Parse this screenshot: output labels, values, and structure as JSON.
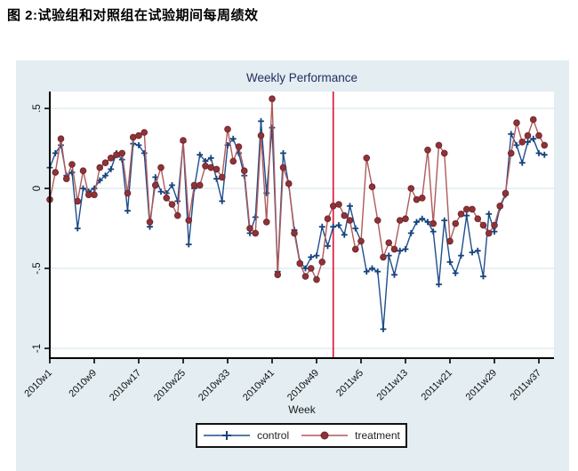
{
  "page": {
    "heading": "图 2:试验组和对照组在试验期间每周绩效"
  },
  "figure": {
    "title": "Weekly Performance",
    "xlabel": "Week",
    "legend": {
      "control": "control",
      "treatment": "treatment"
    }
  },
  "colors": {
    "figure_bg": "#e3edf2",
    "plot_bg": "#ffffff",
    "grid": "#dbe7ec",
    "axis": "#000000",
    "tick_text": "#111111",
    "title_text": "#232d5f",
    "control_line": "#1f4e8c",
    "control_marker": "#16437c",
    "treatment_line": "#b05a5a",
    "treatment_marker": "#8e3338",
    "treatment_marker_edge": "#6d2228",
    "event_line": "#dd1c3c"
  },
  "chart_data": {
    "type": "line",
    "title": "Weekly Performance",
    "xlabel": "Week",
    "ylabel": "",
    "grid": true,
    "legend_position": "bottom-center",
    "ylim": [
      -1.06,
      0.61
    ],
    "y_ticks": [
      {
        "label": ".5",
        "value": 0.5
      },
      {
        "label": "0",
        "value": 0
      },
      {
        "label": "-.5",
        "value": -0.5
      },
      {
        "label": "-1",
        "value": -1
      }
    ],
    "x_tick_labels": [
      "2010w1",
      "2010w9",
      "2010w17",
      "2010w25",
      "2010w33",
      "2010w41",
      "2010w49",
      "2011w5",
      "2011w13",
      "2011w21",
      "2011w29",
      "2011w37"
    ],
    "x_tick_weeks": [
      0,
      8,
      16,
      24,
      32,
      40,
      48,
      56,
      64,
      72,
      80,
      88
    ],
    "event_line_week": "2010w52",
    "weeks": [
      "2010w1",
      "2010w2",
      "2010w3",
      "2010w4",
      "2010w5",
      "2010w6",
      "2010w7",
      "2010w8",
      "2010w9",
      "2010w10",
      "2010w11",
      "2010w12",
      "2010w13",
      "2010w14",
      "2010w15",
      "2010w16",
      "2010w17",
      "2010w18",
      "2010w19",
      "2010w20",
      "2010w21",
      "2010w22",
      "2010w23",
      "2010w24",
      "2010w25",
      "2010w26",
      "2010w27",
      "2010w28",
      "2010w29",
      "2010w30",
      "2010w31",
      "2010w32",
      "2010w33",
      "2010w34",
      "2010w35",
      "2010w36",
      "2010w37",
      "2010w38",
      "2010w39",
      "2010w40",
      "2010w41",
      "2010w42",
      "2010w43",
      "2010w44",
      "2010w45",
      "2010w46",
      "2010w47",
      "2010w48",
      "2010w49",
      "2010w50",
      "2010w51",
      "2010w52",
      "2011w1",
      "2011w2",
      "2011w3",
      "2011w4",
      "2011w5",
      "2011w6",
      "2011w7",
      "2011w8",
      "2011w9",
      "2011w10",
      "2011w11",
      "2011w12",
      "2011w13",
      "2011w14",
      "2011w15",
      "2011w16",
      "2011w17",
      "2011w18",
      "2011w19",
      "2011w20",
      "2011w21",
      "2011w22",
      "2011w23",
      "2011w24",
      "2011w25",
      "2011w26",
      "2011w27",
      "2011w28",
      "2011w29",
      "2011w30",
      "2011w31",
      "2011w32",
      "2011w33",
      "2011w34",
      "2011w35",
      "2011w36",
      "2011w37",
      "2011w38"
    ],
    "series": [
      {
        "name": "control",
        "marker": "plus",
        "values": [
          0.13,
          0.22,
          0.27,
          0.08,
          0.1,
          -0.25,
          0.0,
          -0.02,
          0.0,
          0.05,
          0.08,
          0.12,
          0.22,
          0.18,
          -0.14,
          0.28,
          0.27,
          0.22,
          -0.24,
          0.07,
          -0.02,
          -0.03,
          0.02,
          -0.08,
          0.29,
          -0.35,
          0.0,
          0.21,
          0.17,
          0.19,
          0.06,
          -0.08,
          0.27,
          0.31,
          0.22,
          0.08,
          -0.28,
          -0.18,
          0.42,
          -0.03,
          0.38,
          -0.52,
          0.22,
          0.02,
          -0.26,
          -0.46,
          -0.5,
          -0.43,
          -0.42,
          -0.24,
          -0.36,
          -0.24,
          -0.23,
          -0.29,
          -0.11,
          -0.25,
          -0.33,
          -0.52,
          -0.5,
          -0.52,
          -0.88,
          -0.42,
          -0.54,
          -0.39,
          -0.38,
          -0.28,
          -0.21,
          -0.19,
          -0.21,
          -0.27,
          -0.6,
          -0.2,
          -0.46,
          -0.53,
          -0.42,
          -0.17,
          -0.4,
          -0.39,
          -0.55,
          -0.16,
          -0.27,
          -0.12,
          -0.04,
          0.34,
          0.27,
          0.16,
          0.29,
          0.31,
          0.22,
          0.21
        ]
      },
      {
        "name": "treatment",
        "marker": "circle",
        "values": [
          -0.07,
          0.1,
          0.31,
          0.06,
          0.15,
          -0.08,
          0.11,
          -0.04,
          -0.04,
          0.13,
          0.16,
          0.19,
          0.21,
          0.22,
          -0.03,
          0.32,
          0.33,
          0.35,
          -0.21,
          0.02,
          0.13,
          -0.06,
          -0.1,
          -0.17,
          0.3,
          -0.2,
          0.02,
          0.02,
          0.14,
          0.13,
          0.12,
          0.07,
          0.37,
          0.17,
          0.26,
          0.11,
          -0.25,
          -0.28,
          0.33,
          -0.21,
          0.56,
          -0.54,
          0.13,
          0.03,
          -0.28,
          -0.47,
          -0.55,
          -0.5,
          -0.57,
          -0.46,
          -0.19,
          -0.11,
          -0.1,
          -0.17,
          -0.2,
          -0.38,
          -0.33,
          0.19,
          0.01,
          -0.2,
          -0.43,
          -0.34,
          -0.38,
          -0.2,
          -0.19,
          0.0,
          -0.07,
          -0.06,
          0.24,
          -0.22,
          0.27,
          0.22,
          -0.33,
          -0.22,
          -0.16,
          -0.13,
          -0.13,
          -0.19,
          -0.23,
          -0.28,
          -0.23,
          -0.11,
          -0.03,
          0.22,
          0.41,
          0.29,
          0.33,
          0.43,
          0.33,
          0.27
        ]
      }
    ]
  }
}
